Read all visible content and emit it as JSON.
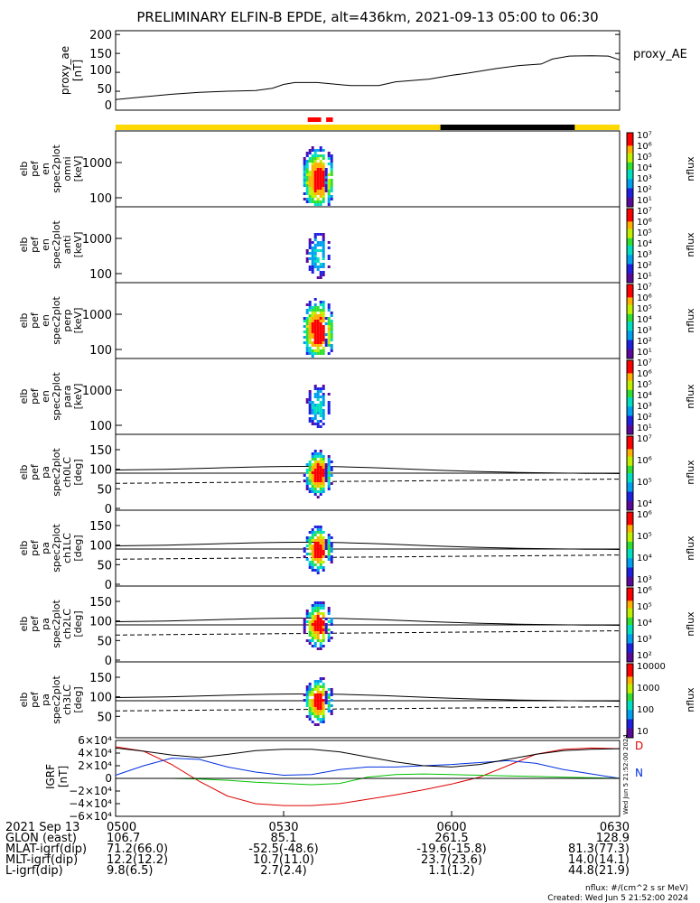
{
  "title": "PRELIMINARY ELFIN-B EPDE, alt=436km, 2021-09-13 05:00 to 06:30",
  "colors": {
    "bar_yellow": "#ffd800",
    "bar_black": "#000000",
    "bar_red": "#ff0000",
    "grf_d": "#e00000",
    "grf_n": "#0030e0",
    "grf_h": "#00c000"
  },
  "top_bar": [
    {
      "from": 0,
      "to": 58,
      "color": "yellow"
    },
    {
      "from": 58,
      "to": 82,
      "color": "black"
    },
    {
      "from": 82,
      "to": 90,
      "color": "yellow"
    }
  ],
  "red_marks": [
    {
      "from": 34.3,
      "to": 36.7
    },
    {
      "from": 37.6,
      "to": 38.8
    }
  ],
  "panels": {
    "proxy_ae": {
      "ylabel": [
        "proxy_ae",
        "[nT]"
      ],
      "right_label": "proxy_AE",
      "yticks": [
        "200",
        "150",
        "100",
        "50",
        "0"
      ]
    },
    "spectra": [
      {
        "ylabel": [
          "elb",
          "pef",
          "en",
          "spec2plot",
          "omni",
          "[keV]"
        ],
        "yticks": [
          "1000",
          "100"
        ],
        "cbar_label": "nflux"
      },
      {
        "ylabel": [
          "elb",
          "pef",
          "en",
          "spec2plot",
          "anti",
          "[keV]"
        ],
        "yticks": [
          "1000",
          "100"
        ],
        "cbar_label": "nflux"
      },
      {
        "ylabel": [
          "elb",
          "pef",
          "en",
          "spec2plot",
          "perp",
          "[keV]"
        ],
        "yticks": [
          "1000",
          "100"
        ],
        "cbar_label": "nflux"
      },
      {
        "ylabel": [
          "elb",
          "pef",
          "en",
          "spec2plot",
          "para",
          "[keV]"
        ],
        "yticks": [
          "1000",
          "100"
        ],
        "cbar_label": "nflux"
      }
    ],
    "pitch_angle": [
      {
        "ylabel": [
          "elb",
          "pef",
          "pa",
          "spec2plot",
          "ch0LC",
          "[deg]"
        ],
        "yticks": [
          "150",
          "100",
          "50",
          "0"
        ],
        "cbar_label": "nflux"
      },
      {
        "ylabel": [
          "elb",
          "pef",
          "pa",
          "spec2plot",
          "ch1LC",
          "[deg]"
        ],
        "yticks": [
          "150",
          "100",
          "50",
          "0"
        ],
        "cbar_label": "nflux"
      },
      {
        "ylabel": [
          "elb",
          "pef",
          "pa",
          "spec2plot",
          "ch2LC",
          "[deg]"
        ],
        "yticks": [
          "150",
          "100",
          "50",
          "0"
        ],
        "cbar_label": "nflux"
      },
      {
        "ylabel": [
          "elb",
          "pef",
          "pa",
          "spec2plot",
          "ch3LC",
          "[deg]"
        ],
        "yticks": [
          "150",
          "100",
          "50"
        ],
        "cbar_label": "nflux"
      }
    ],
    "grf": {
      "ylabel": [
        "IGRF",
        "[nT]"
      ],
      "yticks": [
        "6×10⁴",
        "4×10⁴",
        "2×10⁴",
        "0",
        "−2×10⁴",
        "−4×10⁴",
        "−6×10⁴"
      ],
      "legend": [
        "D",
        "N"
      ]
    }
  },
  "colorbars": [
    {
      "ticks": [
        "10⁷",
        "10⁶",
        "10⁵",
        "10⁴",
        "10³",
        "10²",
        "10¹"
      ]
    },
    {
      "ticks": [
        "10⁷",
        "10⁶",
        "10⁵",
        "10⁴",
        "10³",
        "10²",
        "10¹"
      ]
    },
    {
      "ticks": [
        "10⁷",
        "10⁶",
        "10⁵",
        "10⁴",
        "10³",
        "10²",
        "10¹"
      ]
    },
    {
      "ticks": [
        "10⁷",
        "10⁶",
        "10⁵",
        "10⁴",
        "10³",
        "10²",
        "10¹"
      ]
    },
    {
      "ticks": [
        "10⁷",
        "10⁶",
        "10⁵",
        "10⁴"
      ]
    },
    {
      "ticks": [
        "10⁶",
        "10⁵",
        "10⁴",
        "10³"
      ]
    },
    {
      "ticks": [
        "10⁶",
        "10⁵",
        "10⁴",
        "10³",
        "10²"
      ]
    },
    {
      "ticks": [
        "10000",
        "1000",
        "100",
        "10"
      ]
    }
  ],
  "xaxis": {
    "ticks": [
      {
        "minute": 0,
        "label": "0500"
      },
      {
        "minute": 30,
        "label": "0530"
      },
      {
        "minute": 60,
        "label": "0600"
      },
      {
        "minute": 90,
        "label": "0630"
      }
    ]
  },
  "footer": {
    "rows": [
      {
        "label": "2021 Sep 13",
        "values": [
          "0500",
          "0530",
          "0600",
          "0630"
        ]
      },
      {
        "label": "GLON (east)",
        "values": [
          "106.7",
          "85.1",
          "261.5",
          "128.9"
        ]
      },
      {
        "label": "MLAT-igrf(dip)",
        "values": [
          "71.2(66.0)",
          "-52.5(-48.6)",
          "-19.6(-15.8)",
          "81.3(77.3)"
        ]
      },
      {
        "label": "MLT-igrf(dip)",
        "values": [
          "12.2(12.2)",
          "10.7(11.0)",
          "23.7(23.6)",
          "14.0(14.1)"
        ]
      },
      {
        "label": "L-igrf(dip)",
        "values": [
          "9.8(6.5)",
          "2.7(2.4)",
          "1.1(1.2)",
          "44.8(21.9)"
        ]
      }
    ],
    "units_note": "nflux: #/(cm^2 s sr MeV)",
    "created": "Created: Wed Jun  5 21:52:00 2024",
    "vertical_stamp": "Wed Jun  5 21:52:00 2024"
  },
  "chart_data": [
    {
      "type": "line",
      "title": "PRELIMINARY ELFIN-B EPDE, alt=436km, 2021-09-13 05:00 to 06:30",
      "ylabel": "proxy_ae [nT]",
      "xlabel": "",
      "x_minutes_after_0500": [
        0,
        5,
        10,
        15,
        20,
        25,
        28,
        30,
        32,
        36,
        42,
        47,
        50,
        56,
        60,
        63,
        68,
        72,
        76,
        78,
        81,
        85,
        88,
        90
      ],
      "series": [
        {
          "name": "proxy_AE",
          "values": [
            28,
            35,
            42,
            47,
            50,
            52,
            58,
            68,
            73,
            73,
            65,
            65,
            75,
            82,
            92,
            98,
            110,
            118,
            122,
            135,
            143,
            144,
            143,
            133
          ]
        }
      ],
      "ylim": [
        0,
        210
      ]
    },
    {
      "type": "line",
      "ylabel": "IGRF [nT]",
      "xlabel": "",
      "x_minutes_after_0500": [
        0,
        5,
        10,
        15,
        20,
        25,
        30,
        35,
        40,
        45,
        50,
        55,
        60,
        65,
        70,
        75,
        80,
        85,
        90
      ],
      "series": [
        {
          "name": "D",
          "values": [
            50000,
            43000,
            22000,
            -5000,
            -28000,
            -40000,
            -43000,
            -43000,
            -40000,
            -33000,
            -26000,
            -18000,
            -9000,
            2000,
            20000,
            38000,
            46000,
            48000,
            47000
          ]
        },
        {
          "name": "N",
          "values": [
            5000,
            20000,
            32000,
            30000,
            18000,
            10000,
            5000,
            6000,
            14000,
            18000,
            18000,
            20000,
            22000,
            25000,
            28000,
            24000,
            14000,
            7000,
            0
          ]
        },
        {
          "name": "",
          "values": [
            48000,
            43000,
            37000,
            33000,
            38000,
            44000,
            46000,
            46000,
            42000,
            34000,
            26000,
            20000,
            18000,
            22000,
            30000,
            38000,
            44000,
            46000,
            47000
          ]
        },
        {
          "name": "",
          "values": [
            0,
            0,
            0,
            -1000,
            -3000,
            -6000,
            -8000,
            -10000,
            -8000,
            2000,
            6000,
            7000,
            6000,
            5000,
            4000,
            3000,
            2000,
            1000,
            0
          ]
        }
      ],
      "ylim": [
        -60000,
        60000
      ]
    }
  ]
}
